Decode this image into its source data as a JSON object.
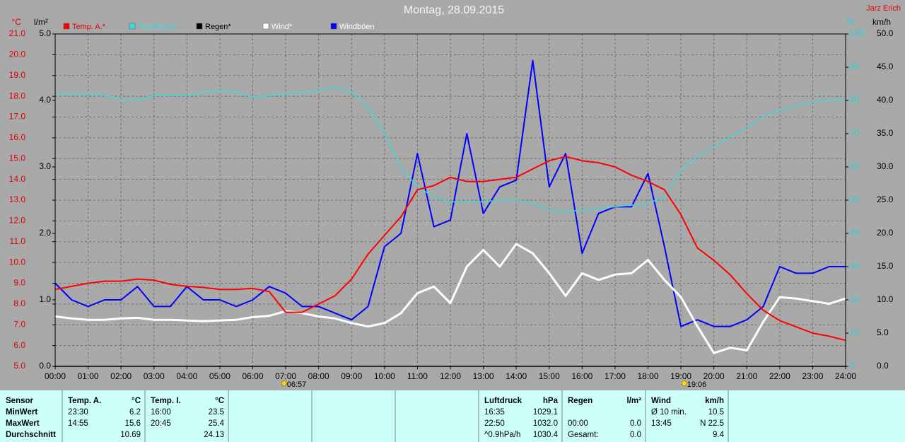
{
  "chart_data": {
    "type": "line",
    "title": "Montag, 28.09.2015",
    "credit": "Jarz Erich",
    "y_label": "°C",
    "y2_label": "l/m²",
    "y3_label": "%",
    "y4_label": "km/h",
    "xlim": [
      0,
      24
    ],
    "xticks": [
      {
        "value": 0,
        "label": "00:00"
      },
      {
        "value": 1,
        "label": "01:00"
      },
      {
        "value": 2,
        "label": "02:00"
      },
      {
        "value": 3,
        "label": "03:00"
      },
      {
        "value": 4,
        "label": "04:00"
      },
      {
        "value": 5,
        "label": "05:00"
      },
      {
        "value": 6,
        "label": "06:00"
      },
      {
        "value": 7,
        "label": "07:00"
      },
      {
        "value": 8,
        "label": "08:00"
      },
      {
        "value": 9,
        "label": "09:00"
      },
      {
        "value": 10,
        "label": "10:00"
      },
      {
        "value": 11,
        "label": "11:00"
      },
      {
        "value": 12,
        "label": "12:00"
      },
      {
        "value": 13,
        "label": "13:00"
      },
      {
        "value": 14,
        "label": "14:00"
      },
      {
        "value": 15,
        "label": "15:00"
      },
      {
        "value": 16,
        "label": "16:00"
      },
      {
        "value": 17,
        "label": "17:00"
      },
      {
        "value": 18,
        "label": "18:00"
      },
      {
        "value": 19,
        "label": "19:00"
      },
      {
        "value": 20,
        "label": "20:00"
      },
      {
        "value": 21,
        "label": "21:00"
      },
      {
        "value": 22,
        "label": "22:00"
      },
      {
        "value": 23,
        "label": "23:00"
      },
      {
        "value": 24,
        "label": "24:00"
      }
    ],
    "ylim": [
      5,
      21
    ],
    "yticks": [
      {
        "value": 5,
        "label": "5.0"
      },
      {
        "value": 6,
        "label": "6.0"
      },
      {
        "value": 7,
        "label": "7.0"
      },
      {
        "value": 8,
        "label": "8.0"
      },
      {
        "value": 9,
        "label": "9.0"
      },
      {
        "value": 10,
        "label": "10.0"
      },
      {
        "value": 11,
        "label": "11.0"
      },
      {
        "value": 12,
        "label": "12.0"
      },
      {
        "value": 13,
        "label": "13.0"
      },
      {
        "value": 14,
        "label": "14.0"
      },
      {
        "value": 15,
        "label": "15.0"
      },
      {
        "value": 16,
        "label": "16.0"
      },
      {
        "value": 17,
        "label": "17.0"
      },
      {
        "value": 18,
        "label": "18.0"
      },
      {
        "value": 19,
        "label": "19.0"
      },
      {
        "value": 20,
        "label": "20.0"
      },
      {
        "value": 21,
        "label": "21.0"
      }
    ],
    "y2lim": [
      0,
      5
    ],
    "y2ticks": [
      {
        "value": 0,
        "label": "0.0"
      },
      {
        "value": 1,
        "label": "1.0"
      },
      {
        "value": 2,
        "label": "2.0"
      },
      {
        "value": 3,
        "label": "3.0"
      },
      {
        "value": 4,
        "label": "4.0"
      },
      {
        "value": 5,
        "label": "5.0"
      }
    ],
    "y3lim": [
      0,
      100
    ],
    "y3ticks": [
      0,
      10,
      20,
      30,
      40,
      50,
      60,
      70,
      80,
      90,
      100
    ],
    "y4lim": [
      0,
      50
    ],
    "y4ticks": [
      {
        "value": 0,
        "label": "0.0"
      },
      {
        "value": 5,
        "label": "5.0"
      },
      {
        "value": 10,
        "label": "10.0"
      },
      {
        "value": 15,
        "label": "15.0"
      },
      {
        "value": 20,
        "label": "20.0"
      },
      {
        "value": 25,
        "label": "25.0"
      },
      {
        "value": 30,
        "label": "30.0"
      },
      {
        "value": 35,
        "label": "35.0"
      },
      {
        "value": 40,
        "label": "40.0"
      },
      {
        "value": 45,
        "label": "45.0"
      },
      {
        "value": 50,
        "label": "50.0"
      }
    ],
    "grid": true,
    "x": [
      0,
      0.5,
      1,
      1.5,
      2,
      2.5,
      3,
      3.5,
      4,
      4.5,
      5,
      5.5,
      6,
      6.5,
      7,
      7.5,
      8,
      8.5,
      9,
      9.5,
      10,
      10.5,
      11,
      11.5,
      12,
      12.5,
      13,
      13.5,
      14,
      14.5,
      15,
      15.5,
      16,
      16.5,
      17,
      17.5,
      18,
      18.5,
      19,
      19.5,
      20,
      20.5,
      21,
      21.5,
      22,
      22.5,
      23,
      23.5,
      24
    ],
    "series": [
      {
        "name": "Temp. A.*",
        "color": "#ff0000",
        "axis": "y",
        "values": [
          8.7,
          8.85,
          9.0,
          9.1,
          9.1,
          9.2,
          9.15,
          8.95,
          8.85,
          8.8,
          8.7,
          8.7,
          8.75,
          8.6,
          7.6,
          7.6,
          8.0,
          8.4,
          9.2,
          10.4,
          11.3,
          12.2,
          13.5,
          13.7,
          14.1,
          13.9,
          13.9,
          14.0,
          14.1,
          14.5,
          14.9,
          15.1,
          14.9,
          14.8,
          14.6,
          14.2,
          13.9,
          13.5,
          12.3,
          10.7,
          10.1,
          9.4,
          8.5,
          7.7,
          7.2,
          6.9,
          6.6,
          6.45,
          6.25
        ]
      },
      {
        "name": "Feuchte A.*",
        "color": "#40d8d8",
        "axis": "y3",
        "values": [
          82,
          82,
          82,
          81.5,
          80.5,
          80,
          81.5,
          81.5,
          81.5,
          82.5,
          83,
          82.5,
          81,
          81.5,
          82,
          82.5,
          83,
          84,
          82.5,
          78,
          70,
          60,
          54,
          51,
          49.5,
          49.5,
          49.5,
          50,
          50,
          49,
          47,
          46.5,
          47,
          47.5,
          48,
          48.5,
          49,
          51,
          59,
          63,
          66,
          69,
          72,
          75,
          77,
          78.5,
          79.5,
          80,
          80.5
        ]
      },
      {
        "name": "Regen*",
        "color": "#000000",
        "axis": "y2",
        "values": [
          0,
          0,
          0,
          0,
          0,
          0,
          0,
          0,
          0,
          0,
          0,
          0,
          0,
          0,
          0,
          0,
          0,
          0,
          0,
          0,
          0,
          0,
          0,
          0,
          0,
          0,
          0,
          0,
          0,
          0,
          0,
          0,
          0,
          0,
          0,
          0,
          0,
          0,
          0,
          0,
          0,
          0,
          0,
          0,
          0,
          0,
          0,
          0,
          0
        ]
      },
      {
        "name": "Wind*",
        "color": "#ffffff",
        "axis": "y4",
        "values": [
          7.5,
          7.2,
          7.0,
          7.0,
          7.2,
          7.3,
          7.0,
          7.0,
          6.9,
          6.8,
          6.9,
          7.0,
          7.4,
          7.6,
          8.3,
          8.0,
          7.5,
          7.2,
          6.5,
          6.0,
          6.5,
          8.0,
          11,
          12,
          9.5,
          15,
          17.5,
          15,
          18.4,
          17,
          14,
          10.6,
          14,
          13,
          13.8,
          14,
          16,
          13,
          10.4,
          6,
          2,
          2.8,
          2.4,
          6.7,
          10.4,
          10.2,
          9.8,
          9.4,
          10.2
        ]
      },
      {
        "name": "Windböen",
        "color": "#0000ff",
        "axis": "y4",
        "values": [
          12.5,
          10,
          9,
          10,
          10,
          12,
          9,
          9,
          12,
          10,
          10,
          9,
          10,
          12,
          11,
          9,
          9,
          8,
          7,
          9,
          18,
          20,
          32,
          21,
          22,
          35,
          23,
          27,
          28,
          46,
          27,
          32,
          17,
          23,
          24,
          24,
          29,
          18,
          6,
          7,
          6,
          6,
          7,
          9,
          15,
          14,
          14,
          15,
          15
        ]
      }
    ],
    "annotations": [
      {
        "x": 6.95,
        "label": "06:57"
      },
      {
        "x": 19.1,
        "label": "19:06"
      }
    ]
  },
  "table": {
    "sensor": {
      "title": "Sensor",
      "rows": [
        "MinWert",
        "MaxWert",
        "Durchschnitt"
      ]
    },
    "groups": [
      {
        "title": "Temp. A.",
        "unit": "°C",
        "rows": [
          [
            "23:30",
            "6.2"
          ],
          [
            "14:55",
            "15.6"
          ],
          [
            null,
            "10.69"
          ]
        ]
      },
      {
        "title": "Temp. I.",
        "unit": "°C",
        "rows": [
          [
            "16:00",
            "23.5"
          ],
          [
            "20:45",
            "25.4"
          ],
          [
            null,
            "24.13"
          ]
        ]
      },
      {
        "title": "Luftdruck",
        "unit": "hPa",
        "rows": [
          [
            "16:35",
            "1029.1"
          ],
          [
            "22:50",
            "1032.0"
          ],
          [
            "^0.9hPa/h",
            "1030.4"
          ]
        ]
      },
      {
        "title": "Regen",
        "unit": "l/m²",
        "rows": [
          [
            null,
            null
          ],
          [
            "00:00",
            "0.0"
          ],
          [
            "Gesamt:",
            "0.0"
          ]
        ]
      },
      {
        "title": "Wind",
        "unit": "km/h",
        "rows": [
          [
            "Ø 10 min.",
            "10.5"
          ],
          [
            "13:45",
            "N 22.5"
          ],
          [
            null,
            "9.4"
          ]
        ]
      }
    ]
  }
}
